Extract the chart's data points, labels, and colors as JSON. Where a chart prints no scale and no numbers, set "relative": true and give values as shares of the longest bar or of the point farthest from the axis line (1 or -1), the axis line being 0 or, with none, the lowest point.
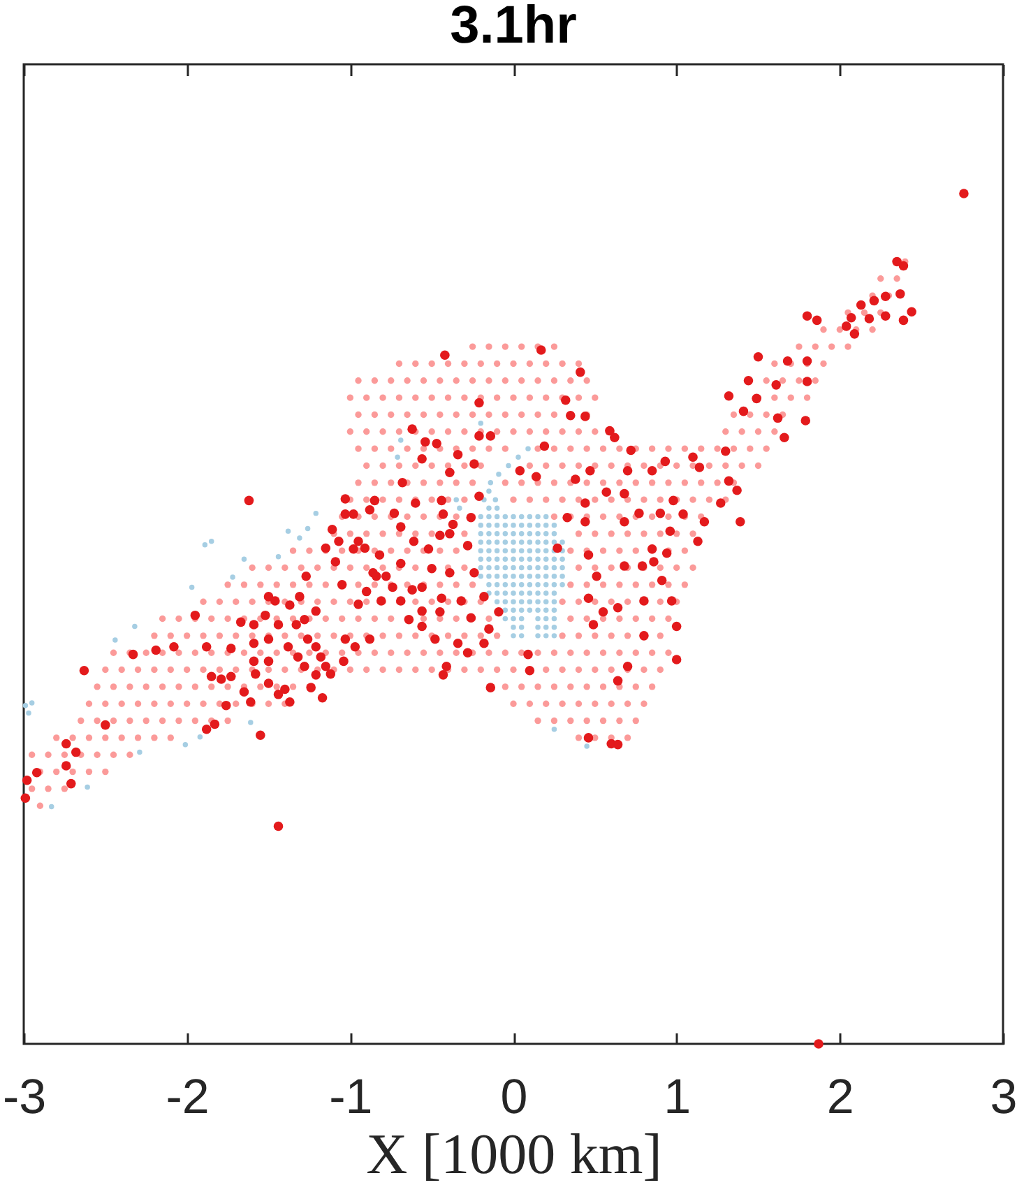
{
  "chart_data": {
    "type": "scatter",
    "title": "3.1hr",
    "xlabel": "X [1000 km]",
    "xlim": [
      -3,
      3
    ],
    "xticks": [
      -3,
      -2,
      -1,
      0,
      1,
      2,
      3
    ],
    "tick_labels": "x",
    "relative": true,
    "marker": "circle",
    "series": [
      {
        "color": "#fb9a99",
        "x": [
          2.4,
          2.25,
          2.35,
          2.2,
          2.3,
          2.05,
          2.15,
          2.25,
          1.9,
          2.0,
          2.1,
          2.2,
          -0.25,
          -0.15,
          -0.05,
          0.05,
          0.15,
          0.25,
          1.75,
          1.85,
          1.95,
          2.05,
          -0.7,
          -0.6,
          -0.5,
          -0.4,
          -0.3,
          -0.2,
          -0.1,
          0,
          0.1,
          0.2,
          0.3,
          0.4,
          1.6,
          1.7,
          1.8,
          1.9,
          -0.95,
          -0.85,
          -0.75,
          -0.65,
          -0.55,
          -0.45,
          -0.35,
          -0.25,
          -0.15,
          -0.05,
          0.05,
          0.15,
          0.25,
          0.35,
          0.45,
          1.55,
          1.65,
          1.75,
          1.85,
          -1,
          -0.9,
          -0.8,
          -0.7,
          -0.6,
          -0.5,
          -0.4,
          -0.3,
          -0.2,
          -0.1,
          0,
          0.1,
          0.2,
          0.3,
          0.4,
          0.5,
          1.5,
          1.6,
          1.7,
          1.8,
          -0.95,
          -0.85,
          -0.75,
          -0.65,
          -0.55,
          -0.45,
          -0.35,
          -0.25,
          -0.15,
          -0.05,
          0.05,
          0.15,
          0.25,
          0.45,
          1.35,
          1.45,
          1.55,
          1.65,
          -1,
          -0.9,
          -0.8,
          -0.7,
          -0.6,
          -0.5,
          -0.4,
          -0.3,
          -0.2,
          -0.1,
          0,
          0.1,
          0.2,
          0.3,
          0.4,
          0.5,
          0.6,
          1.3,
          1.4,
          1.5,
          1.6,
          -0.95,
          -0.85,
          -0.75,
          -0.65,
          -0.55,
          -0.45,
          -0.35,
          -0.25,
          -0.15,
          -0.05,
          0.15,
          0.25,
          0.35,
          0.45,
          0.55,
          0.65,
          0.75,
          0.85,
          0.95,
          1.05,
          1.15,
          1.25,
          1.35,
          1.45,
          1.55,
          -0.9,
          -0.8,
          -0.7,
          -0.6,
          -0.5,
          -0.4,
          -0.3,
          -0.2,
          0.1,
          0.2,
          0.3,
          0.4,
          0.5,
          0.6,
          0.7,
          0.8,
          0.9,
          1,
          1.1,
          1.2,
          1.3,
          1.4,
          1.5,
          -0.95,
          -0.85,
          -0.75,
          -0.65,
          -0.55,
          -0.45,
          -0.35,
          -0.25,
          -0.05,
          0.05,
          0.15,
          0.25,
          0.35,
          0.45,
          0.55,
          0.65,
          0.75,
          0.85,
          0.95,
          1.05,
          1.15,
          1.25,
          1.35,
          -1,
          -0.9,
          -0.8,
          -0.7,
          -0.6,
          -0.5,
          -0.4,
          -0.3,
          0,
          0.1,
          0.2,
          0.3,
          0.4,
          0.5,
          0.6,
          0.7,
          0.8,
          0.9,
          1,
          1.1,
          1.2,
          1.3,
          -1.05,
          -0.95,
          -0.85,
          -0.75,
          -0.65,
          -0.55,
          -0.45,
          -0.35,
          -0.25,
          0.25,
          0.35,
          0.45,
          0.55,
          0.65,
          0.75,
          0.85,
          0.95,
          1.05,
          1.15,
          -1.1,
          -1,
          -0.9,
          -0.8,
          -0.7,
          -0.6,
          -0.5,
          -0.4,
          -0.3,
          0.4,
          0.5,
          0.6,
          0.7,
          0.8,
          0.9,
          1,
          1.1,
          -1.35,
          -1.25,
          -1.15,
          -1.05,
          -0.95,
          -0.85,
          -0.75,
          -0.65,
          -0.55,
          -0.45,
          -0.35,
          0.35,
          0.45,
          0.55,
          0.65,
          0.75,
          0.85,
          0.95,
          1.05,
          -1.6,
          -1.5,
          -1.4,
          -1.3,
          -1.2,
          -1.1,
          -1,
          -0.9,
          -0.8,
          -0.7,
          -0.6,
          -0.4,
          -0.3,
          0.4,
          0.5,
          0.6,
          0.7,
          0.8,
          0.9,
          1,
          1.1,
          -1.75,
          -1.65,
          -1.55,
          -1.45,
          -1.35,
          -1.25,
          -1.15,
          -0.95,
          -0.85,
          -0.75,
          -0.65,
          -0.55,
          -0.45,
          -0.35,
          -0.25,
          0.35,
          0.45,
          0.55,
          0.65,
          0.75,
          0.85,
          0.95,
          1.05,
          -1.9,
          -1.8,
          -1.7,
          -1.6,
          -1.5,
          -1.4,
          -1.3,
          -1.2,
          -1.1,
          -1,
          -0.9,
          -0.8,
          -0.7,
          -0.6,
          -0.5,
          -0.4,
          -0.3,
          -0.2,
          0.3,
          0.4,
          0.5,
          0.6,
          0.7,
          0.9,
          1,
          -2.15,
          -2.05,
          -1.95,
          -1.85,
          -1.75,
          -1.65,
          -1.55,
          -1.45,
          -1.35,
          -1.25,
          -1.15,
          -1.05,
          -0.95,
          -0.85,
          -0.75,
          -0.65,
          -0.55,
          -0.45,
          -0.35,
          -0.25,
          -0.15,
          0.35,
          0.45,
          0.55,
          0.65,
          0.75,
          0.85,
          0.95,
          -2.2,
          -2.1,
          -2,
          -1.9,
          -1.8,
          -1.7,
          -1.6,
          -1.5,
          -1.4,
          -1.3,
          -1.2,
          -1.1,
          -1,
          -0.9,
          -0.8,
          -0.7,
          -0.6,
          -0.5,
          -0.4,
          -0.3,
          -0.2,
          -0.1,
          0.3,
          0.4,
          0.5,
          0.6,
          0.7,
          0.9,
          -2.45,
          -2.35,
          -2.25,
          -2.15,
          -2.05,
          -1.95,
          -1.85,
          -1.75,
          -1.65,
          -1.55,
          -1.45,
          -1.35,
          -1.25,
          -1.15,
          -1.05,
          -0.95,
          -0.85,
          -0.75,
          -0.65,
          -0.55,
          -0.45,
          -0.35,
          -0.25,
          -0.15,
          -0.05,
          0.05,
          0.15,
          0.25,
          0.35,
          0.45,
          0.55,
          0.65,
          0.75,
          0.85,
          0.95,
          -2.5,
          -2.4,
          -2.3,
          -2.2,
          -2.1,
          -2,
          -1.9,
          -1.8,
          -1.7,
          -1.6,
          -1.5,
          -1.4,
          -1.3,
          -1.2,
          -1.1,
          -1,
          -0.9,
          -0.8,
          -0.7,
          -0.6,
          -0.5,
          -0.4,
          -0.3,
          -0.2,
          -0.1,
          0,
          0.2,
          0.3,
          0.4,
          0.5,
          0.6,
          0.7,
          0.8,
          0.9,
          -2.55,
          -2.45,
          -2.35,
          -2.25,
          -2.15,
          -2.05,
          -1.95,
          -1.85,
          -1.75,
          -1.65,
          -1.55,
          -1.45,
          -1.35,
          -1.25,
          -0.05,
          0.05,
          0.15,
          0.25,
          0.35,
          0.45,
          0.55,
          0.65,
          0.75,
          0.85,
          -2.6,
          -2.5,
          -2.4,
          -2.3,
          -2.2,
          -2.1,
          -2,
          -1.9,
          -1.8,
          -1.7,
          -1.6,
          -1.5,
          -1.4,
          0,
          0.1,
          0.2,
          0.3,
          0.4,
          0.5,
          0.6,
          0.7,
          0.8,
          -2.65,
          -2.55,
          -2.45,
          -2.35,
          -2.25,
          -2.15,
          -2.05,
          -1.95,
          -1.85,
          -1.75,
          0.15,
          0.25,
          0.35,
          0.45,
          0.55,
          0.65,
          0.75,
          -2.8,
          -2.7,
          -2.6,
          -2.5,
          -2.4,
          -2.3,
          -2.2,
          -2.1,
          0.4,
          0.5,
          0.6,
          0.7,
          -2.95,
          -2.85,
          -2.75,
          -2.65,
          -2.55,
          -2.45,
          -2.35,
          -2.9,
          -2.8,
          -2.7,
          -2.6,
          -2.5,
          -2.95,
          -2.85,
          -2.75,
          -2.9
        ],
        "values": [
          0.92,
          0.9,
          0.9,
          0.88,
          0.88,
          0.86,
          0.86,
          0.86,
          0.84,
          0.84,
          0.84,
          0.84,
          0.82,
          0.82,
          0.82,
          0.82,
          0.82,
          0.82,
          0.82,
          0.82,
          0.82,
          0.82,
          0.8,
          0.8,
          0.8,
          0.8,
          0.8,
          0.8,
          0.8,
          0.8,
          0.8,
          0.8,
          0.8,
          0.8,
          0.8,
          0.8,
          0.8,
          0.8,
          0.78,
          0.78,
          0.78,
          0.78,
          0.78,
          0.78,
          0.78,
          0.78,
          0.78,
          0.78,
          0.78,
          0.78,
          0.78,
          0.78,
          0.78,
          0.78,
          0.78,
          0.78,
          0.78,
          0.76,
          0.76,
          0.76,
          0.76,
          0.76,
          0.76,
          0.76,
          0.76,
          0.76,
          0.76,
          0.76,
          0.76,
          0.76,
          0.76,
          0.76,
          0.76,
          0.76,
          0.76,
          0.76,
          0.76,
          0.74,
          0.74,
          0.74,
          0.74,
          0.74,
          0.74,
          0.74,
          0.74,
          0.74,
          0.74,
          0.74,
          0.74,
          0.74,
          0.74,
          0.74,
          0.74,
          0.74,
          0.74,
          0.72,
          0.72,
          0.72,
          0.72,
          0.72,
          0.72,
          0.72,
          0.72,
          0.72,
          0.72,
          0.72,
          0.72,
          0.72,
          0.72,
          0.72,
          0.72,
          0.72,
          0.72,
          0.72,
          0.72,
          0.72,
          0.7,
          0.7,
          0.7,
          0.7,
          0.7,
          0.7,
          0.7,
          0.7,
          0.7,
          0.7,
          0.7,
          0.7,
          0.7,
          0.7,
          0.7,
          0.7,
          0.7,
          0.7,
          0.7,
          0.7,
          0.7,
          0.7,
          0.7,
          0.7,
          0.7,
          0.68,
          0.68,
          0.68,
          0.68,
          0.68,
          0.68,
          0.68,
          0.68,
          0.68,
          0.68,
          0.68,
          0.68,
          0.68,
          0.68,
          0.68,
          0.68,
          0.68,
          0.68,
          0.68,
          0.68,
          0.68,
          0.68,
          0.68,
          0.66,
          0.66,
          0.66,
          0.66,
          0.66,
          0.66,
          0.66,
          0.66,
          0.66,
          0.66,
          0.66,
          0.66,
          0.66,
          0.66,
          0.66,
          0.66,
          0.66,
          0.66,
          0.66,
          0.66,
          0.66,
          0.66,
          0.66,
          0.64,
          0.64,
          0.64,
          0.64,
          0.64,
          0.64,
          0.64,
          0.64,
          0.64,
          0.64,
          0.64,
          0.64,
          0.64,
          0.64,
          0.64,
          0.64,
          0.64,
          0.64,
          0.64,
          0.64,
          0.64,
          0.64,
          0.62,
          0.62,
          0.62,
          0.62,
          0.62,
          0.62,
          0.62,
          0.62,
          0.62,
          0.62,
          0.62,
          0.62,
          0.62,
          0.62,
          0.62,
          0.62,
          0.62,
          0.62,
          0.62,
          0.6,
          0.6,
          0.6,
          0.6,
          0.6,
          0.6,
          0.6,
          0.6,
          0.6,
          0.6,
          0.6,
          0.6,
          0.6,
          0.6,
          0.6,
          0.6,
          0.6,
          0.58,
          0.58,
          0.58,
          0.58,
          0.58,
          0.58,
          0.58,
          0.58,
          0.58,
          0.58,
          0.58,
          0.58,
          0.58,
          0.58,
          0.58,
          0.58,
          0.58,
          0.58,
          0.58,
          0.56,
          0.56,
          0.56,
          0.56,
          0.56,
          0.56,
          0.56,
          0.56,
          0.56,
          0.56,
          0.56,
          0.56,
          0.56,
          0.56,
          0.56,
          0.56,
          0.56,
          0.56,
          0.56,
          0.56,
          0.56,
          0.54,
          0.54,
          0.54,
          0.54,
          0.54,
          0.54,
          0.54,
          0.54,
          0.54,
          0.54,
          0.54,
          0.54,
          0.54,
          0.54,
          0.54,
          0.54,
          0.54,
          0.54,
          0.54,
          0.54,
          0.54,
          0.54,
          0.54,
          0.52,
          0.52,
          0.52,
          0.52,
          0.52,
          0.52,
          0.52,
          0.52,
          0.52,
          0.52,
          0.52,
          0.52,
          0.52,
          0.52,
          0.52,
          0.52,
          0.52,
          0.52,
          0.52,
          0.52,
          0.52,
          0.52,
          0.52,
          0.52,
          0.52,
          0.5,
          0.5,
          0.5,
          0.5,
          0.5,
          0.5,
          0.5,
          0.5,
          0.5,
          0.5,
          0.5,
          0.5,
          0.5,
          0.5,
          0.5,
          0.5,
          0.5,
          0.5,
          0.5,
          0.5,
          0.5,
          0.5,
          0.5,
          0.5,
          0.5,
          0.5,
          0.5,
          0.5,
          0.48,
          0.48,
          0.48,
          0.48,
          0.48,
          0.48,
          0.48,
          0.48,
          0.48,
          0.48,
          0.48,
          0.48,
          0.48,
          0.48,
          0.48,
          0.48,
          0.48,
          0.48,
          0.48,
          0.48,
          0.48,
          0.48,
          0.48,
          0.48,
          0.48,
          0.48,
          0.48,
          0.48,
          0.46,
          0.46,
          0.46,
          0.46,
          0.46,
          0.46,
          0.46,
          0.46,
          0.46,
          0.46,
          0.46,
          0.46,
          0.46,
          0.46,
          0.46,
          0.46,
          0.46,
          0.46,
          0.46,
          0.46,
          0.46,
          0.46,
          0.46,
          0.46,
          0.46,
          0.46,
          0.46,
          0.46,
          0.46,
          0.46,
          0.46,
          0.46,
          0.46,
          0.46,
          0.46,
          0.44,
          0.44,
          0.44,
          0.44,
          0.44,
          0.44,
          0.44,
          0.44,
          0.44,
          0.44,
          0.44,
          0.44,
          0.44,
          0.44,
          0.44,
          0.44,
          0.44,
          0.44,
          0.44,
          0.44,
          0.44,
          0.44,
          0.44,
          0.44,
          0.44,
          0.44,
          0.44,
          0.44,
          0.44,
          0.44,
          0.44,
          0.44,
          0.44,
          0.44,
          0.42,
          0.42,
          0.42,
          0.42,
          0.42,
          0.42,
          0.42,
          0.42,
          0.42,
          0.42,
          0.42,
          0.42,
          0.42,
          0.42,
          0.42,
          0.42,
          0.42,
          0.42,
          0.42,
          0.42,
          0.42,
          0.42,
          0.42,
          0.42,
          0.4,
          0.4,
          0.4,
          0.4,
          0.4,
          0.4,
          0.4,
          0.4,
          0.4,
          0.4,
          0.4,
          0.4,
          0.4,
          0.4,
          0.4,
          0.4,
          0.4,
          0.4,
          0.4,
          0.4,
          0.4,
          0.4,
          0.38,
          0.38,
          0.38,
          0.38,
          0.38,
          0.38,
          0.38,
          0.38,
          0.38,
          0.38,
          0.38,
          0.38,
          0.38,
          0.38,
          0.38,
          0.38,
          0.38,
          0.36,
          0.36,
          0.36,
          0.36,
          0.36,
          0.36,
          0.36,
          0.36,
          0.36,
          0.36,
          0.36,
          0.36,
          0.34,
          0.34,
          0.34,
          0.34,
          0.34,
          0.34,
          0.34,
          0.32,
          0.32,
          0.32,
          0.32,
          0.32,
          0.3,
          0.3,
          0.3,
          0.28
        ]
      },
      {
        "color": "#a6cee3",
        "x": [
          -0.15,
          -0.1,
          -0.2,
          -0.15,
          -0.1,
          -0.05,
          0,
          0.05,
          0.1,
          0.15,
          0.2,
          -0.2,
          -0.15,
          -0.1,
          -0.05,
          0,
          0.05,
          0.1,
          0.15,
          0.2,
          0.25,
          -0.2,
          -0.15,
          -0.1,
          -0.05,
          0,
          0.05,
          0.1,
          0.15,
          0.2,
          0.25,
          -0.2,
          -0.15,
          -0.1,
          -0.05,
          0,
          0.05,
          0.1,
          0.15,
          0.2,
          0.25,
          0.3,
          -0.2,
          -0.15,
          -0.1,
          -0.05,
          0,
          0.05,
          0.1,
          0.15,
          0.2,
          0.25,
          0.3,
          -0.2,
          -0.15,
          -0.1,
          -0.05,
          0,
          0.05,
          0.1,
          0.15,
          0.2,
          0.25,
          0.3,
          -0.2,
          -0.15,
          -0.1,
          -0.05,
          0,
          0.05,
          0.1,
          0.15,
          0.2,
          0.25,
          0.3,
          -0.2,
          -0.15,
          -0.1,
          -0.05,
          0,
          0.05,
          0.1,
          0.15,
          0.2,
          0.25,
          0.3,
          -0.15,
          -0.1,
          -0.05,
          0,
          0.05,
          0.1,
          0.15,
          0.2,
          0.25,
          0.3,
          -0.15,
          -0.1,
          -0.05,
          0,
          0.05,
          0.1,
          0.15,
          0.2,
          0.25,
          -0.1,
          -0.05,
          0,
          0.05,
          0.1,
          0.15,
          0.2,
          0.25,
          -0.05,
          0,
          0.05,
          0.1,
          0.15,
          0.2,
          0.25,
          -0.05,
          0,
          0.05,
          0.15,
          0.2,
          0.25,
          0,
          0.05,
          0.15,
          0.2,
          0.25,
          0,
          0.05,
          0.15,
          0.2,
          0.25,
          0.09,
          0.03,
          -0.03,
          -0.09,
          -0.14,
          -0.15,
          -0.11,
          -0.18,
          -0.69,
          -0.71,
          -0.35,
          -0.33,
          -0.2,
          0.25,
          0.45,
          -1.89,
          -1.85,
          -1.97,
          -1.72,
          -2.44,
          -2.32,
          -2.99,
          -2.95,
          -2.97,
          -1.38,
          -1.21,
          -1.26,
          -1.31,
          -1.65,
          -1.44,
          -2.01,
          -1.92,
          -1.61,
          -2.29,
          -2.61,
          -2.83
        ],
        "values": [
          0.63,
          0.63,
          0.62,
          0.62,
          0.62,
          0.62,
          0.62,
          0.62,
          0.62,
          0.62,
          0.62,
          0.61,
          0.61,
          0.61,
          0.61,
          0.61,
          0.61,
          0.61,
          0.61,
          0.61,
          0.61,
          0.6,
          0.6,
          0.6,
          0.6,
          0.6,
          0.6,
          0.6,
          0.6,
          0.6,
          0.6,
          0.59,
          0.59,
          0.59,
          0.59,
          0.59,
          0.59,
          0.59,
          0.59,
          0.59,
          0.59,
          0.59,
          0.58,
          0.58,
          0.58,
          0.58,
          0.58,
          0.58,
          0.58,
          0.58,
          0.58,
          0.58,
          0.58,
          0.57,
          0.57,
          0.57,
          0.57,
          0.57,
          0.57,
          0.57,
          0.57,
          0.57,
          0.57,
          0.57,
          0.56,
          0.56,
          0.56,
          0.56,
          0.56,
          0.56,
          0.56,
          0.56,
          0.56,
          0.56,
          0.56,
          0.55,
          0.55,
          0.55,
          0.55,
          0.55,
          0.55,
          0.55,
          0.55,
          0.55,
          0.55,
          0.55,
          0.54,
          0.54,
          0.54,
          0.54,
          0.54,
          0.54,
          0.54,
          0.54,
          0.54,
          0.54,
          0.53,
          0.53,
          0.53,
          0.53,
          0.53,
          0.53,
          0.53,
          0.53,
          0.53,
          0.52,
          0.52,
          0.52,
          0.52,
          0.52,
          0.52,
          0.52,
          0.52,
          0.51,
          0.51,
          0.51,
          0.51,
          0.51,
          0.51,
          0.51,
          0.5,
          0.5,
          0.5,
          0.5,
          0.5,
          0.5,
          0.49,
          0.49,
          0.49,
          0.49,
          0.49,
          0.48,
          0.48,
          0.48,
          0.48,
          0.48,
          0.7,
          0.69,
          0.68,
          0.67,
          0.66,
          0.65,
          0.64,
          0.64,
          0.71,
          0.69,
          0.64,
          0.63,
          0.73,
          0.37,
          0.35,
          0.587,
          0.591,
          0.537,
          0.549,
          0.475,
          0.491,
          0.398,
          0.401,
          0.389,
          0.603,
          0.624,
          0.606,
          0.595,
          0.57,
          0.573,
          0.352,
          0.361,
          0.378,
          0.343,
          0.302,
          0.279
        ]
      },
      {
        "color": "#e31a1c",
        "x": [
          2.76,
          1.87,
          -1.44,
          -1.62,
          -2.63,
          -2.33,
          -2.19,
          -2.08,
          -1.95,
          -1.88,
          -2.5,
          -2.74,
          -2.68,
          -2.74,
          -2.92,
          -2.98,
          -2.99,
          -2.71,
          -1.88,
          -1.83,
          -1.76,
          -1.85,
          -1.79,
          -1.73,
          -1.73,
          -1.67,
          -1.59,
          -1.5,
          -1.46,
          -1.52,
          -1.44,
          -1.5,
          -1.59,
          -1.59,
          -1.5,
          -1.58,
          -1.65,
          -1.61,
          -1.5,
          -1.44,
          -1.37,
          -1.4,
          -1.38,
          -1.32,
          -1.28,
          -1.33,
          -1.28,
          -1.26,
          -1.31,
          -1.37,
          -1.21,
          -1.21,
          -1.18,
          -1.15,
          -1.12,
          -1.21,
          -1.24,
          -1.04,
          -0.97,
          -1.03,
          -0.88,
          -1.17,
          -1.55,
          -1.27,
          -1.11,
          -1.15,
          -1.09,
          -1.05,
          -1.03,
          -0.98,
          -0.88,
          -0.95,
          -0.91,
          -0.86,
          -0.9,
          -0.81,
          -0.82,
          -0.42,
          0.17,
          0.41,
          -0.21,
          0.32,
          0.35,
          0.44,
          0.59,
          0.62,
          -0.62,
          -0.54,
          -0.47,
          -0.21,
          -0.14,
          -0.34,
          0.19,
          0.72,
          0.93,
          1.1,
          0.7,
          0.47,
          0.38,
          0.85,
          0.04,
          0.14,
          -0.24,
          -0.39,
          -0.56,
          -0.68,
          -0.21,
          -0.44,
          -0.6,
          -0.73,
          -0.85,
          -1.03,
          -0.43,
          -0.37,
          -0.26,
          -0.39,
          -0.69,
          -0.61,
          -0.45,
          -0.28,
          -0.52,
          -0.69,
          -0.5,
          -0.39,
          -0.24,
          -0.78,
          -0.98,
          -1.07,
          -0.84,
          -0.74,
          -0.62,
          -0.56,
          -0.44,
          -0.32,
          -0.18,
          -0.09,
          -0.15,
          -0.26,
          -0.45,
          -0.56,
          -0.69,
          -0.95,
          -0.64,
          -0.56,
          -0.48,
          -0.34,
          -0.18,
          -0.28,
          -0.41,
          -0.43,
          -0.14,
          0.09,
          0.1,
          0.27,
          0.33,
          0.44,
          0.44,
          0.57,
          0.68,
          0.68,
          0.77,
          0.9,
          0.98,
          1.04,
          0.96,
          0.85,
          0.79,
          0.91,
          0.97,
          0.8,
          0.64,
          0.55,
          0.68,
          0.51,
          0.46,
          0.46,
          0.49,
          0.8,
          1.0,
          1.13,
          1.17,
          1.27,
          1.0,
          0.7,
          0.64,
          0.46,
          0.6,
          0.64,
          2.35,
          2.39,
          2.37,
          2.44,
          2.39,
          2.28,
          2.21,
          2.13,
          2.07,
          2.28,
          2.18,
          2.04,
          2.09,
          1.8,
          1.86,
          1.5,
          1.68,
          1.8,
          1.8,
          1.44,
          1.61,
          1.32,
          1.49,
          1.41,
          1.62,
          1.79,
          1.66,
          1.3,
          1.14,
          1.32,
          1.37,
          1.39,
          0.94,
          0.86
        ],
        "values": [
          1.0,
          0.0,
          0.256,
          0.639,
          0.439,
          0.458,
          0.463,
          0.467,
          0.504,
          0.467,
          0.375,
          0.353,
          0.343,
          0.327,
          0.319,
          0.31,
          0.289,
          0.306,
          0.37,
          0.376,
          0.398,
          0.432,
          0.429,
          0.432,
          0.465,
          0.496,
          0.493,
          0.526,
          0.521,
          0.504,
          0.493,
          0.476,
          0.471,
          0.45,
          0.45,
          0.435,
          0.414,
          0.402,
          0.424,
          0.411,
          0.402,
          0.417,
          0.467,
          0.455,
          0.444,
          0.493,
          0.499,
          0.476,
          0.526,
          0.516,
          0.509,
          0.467,
          0.455,
          0.444,
          0.435,
          0.434,
          0.419,
          0.45,
          0.467,
          0.476,
          0.476,
          0.407,
          0.363,
          0.55,
          0.605,
          0.583,
          0.567,
          0.54,
          0.641,
          0.623,
          0.628,
          0.591,
          0.583,
          0.554,
          0.532,
          0.521,
          0.575,
          0.81,
          0.816,
          0.79,
          0.754,
          0.757,
          0.739,
          0.738,
          0.721,
          0.713,
          0.723,
          0.708,
          0.706,
          0.715,
          0.715,
          0.693,
          0.703,
          0.698,
          0.685,
          0.69,
          0.674,
          0.674,
          0.664,
          0.674,
          0.674,
          0.667,
          0.682,
          0.672,
          0.688,
          0.66,
          0.644,
          0.639,
          0.636,
          0.624,
          0.639,
          0.623,
          0.623,
          0.611,
          0.619,
          0.6,
          0.608,
          0.591,
          0.598,
          0.586,
          0.582,
          0.565,
          0.559,
          0.554,
          0.554,
          0.55,
          0.582,
          0.591,
          0.55,
          0.537,
          0.534,
          0.537,
          0.524,
          0.521,
          0.526,
          0.508,
          0.488,
          0.501,
          0.508,
          0.509,
          0.521,
          0.517,
          0.499,
          0.491,
          0.476,
          0.471,
          0.471,
          0.46,
          0.444,
          0.434,
          0.419,
          0.458,
          0.439,
          0.583,
          0.619,
          0.614,
          0.636,
          0.649,
          0.647,
          0.614,
          0.624,
          0.624,
          0.639,
          0.623,
          0.603,
          0.582,
          0.562,
          0.545,
          0.521,
          0.521,
          0.513,
          0.508,
          0.562,
          0.55,
          0.524,
          0.575,
          0.493,
          0.48,
          0.491,
          0.591,
          0.614,
          0.636,
          0.452,
          0.444,
          0.427,
          0.36,
          0.353,
          0.352,
          0.92,
          0.915,
          0.882,
          0.861,
          0.851,
          0.879,
          0.874,
          0.869,
          0.854,
          0.856,
          0.853,
          0.844,
          0.835,
          0.856,
          0.851,
          0.808,
          0.803,
          0.803,
          0.779,
          0.78,
          0.775,
          0.762,
          0.759,
          0.744,
          0.736,
          0.733,
          0.713,
          0.697,
          0.678,
          0.662,
          0.651,
          0.614,
          0.577,
          0.567
        ]
      }
    ]
  }
}
